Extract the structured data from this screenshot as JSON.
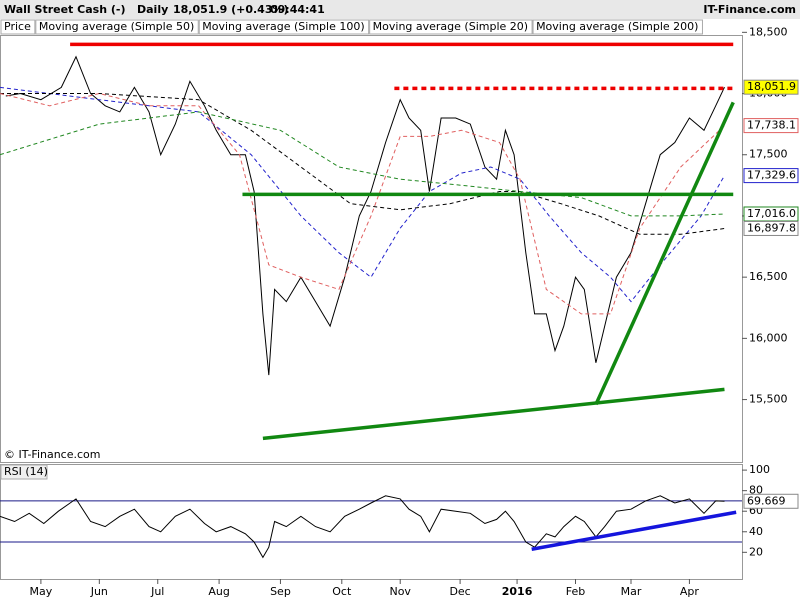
{
  "header": {
    "title": "Wall Street Cash (-)",
    "period": "Daily",
    "last": "18,051.9 (+0.43%)",
    "time": "09:44:41",
    "source": "IT-Finance.com",
    "copyright": "© IT-Finance.com"
  },
  "chart_data": [
    {
      "type": "line",
      "xlim": [
        0,
        254
      ],
      "ylim": [
        14990,
        18470
      ],
      "yticks": [
        {
          "value": 15500,
          "label": "15,500"
        },
        {
          "value": 16000,
          "label": "16,000"
        },
        {
          "value": 16500,
          "label": "16,500"
        },
        {
          "value": 17000,
          "label": "17,000"
        },
        {
          "value": 17500,
          "label": "17,500"
        },
        {
          "value": 18000,
          "label": "18,000"
        },
        {
          "value": 18500,
          "label": "18,500"
        }
      ],
      "series": [
        {
          "name": "Price",
          "color": "#000000",
          "style": "solid",
          "x": [
            2,
            7,
            14,
            21,
            26,
            31,
            36,
            41,
            46,
            51,
            55,
            60,
            65,
            70,
            74,
            79,
            84,
            87,
            90,
            92,
            94,
            98,
            103,
            108,
            113,
            118,
            123,
            127,
            132,
            137,
            140,
            144,
            147,
            151,
            156,
            161,
            166,
            170,
            173,
            176,
            180,
            183,
            187,
            190,
            193,
            197,
            200,
            204,
            207,
            211,
            216,
            221,
            226,
            231,
            236,
            241,
            245,
            248
          ],
          "values": [
            17980,
            18000,
            17950,
            18050,
            18300,
            18000,
            17900,
            17850,
            18050,
            17850,
            17500,
            17750,
            18100,
            17900,
            17700,
            17500,
            17500,
            17200,
            16200,
            15700,
            16400,
            16300,
            16500,
            16300,
            16100,
            16500,
            17000,
            17200,
            17600,
            17950,
            17800,
            17700,
            17200,
            17800,
            17800,
            17750,
            17400,
            17300,
            17700,
            17500,
            16700,
            16200,
            16200,
            15900,
            16100,
            16500,
            16400,
            15800,
            16100,
            16500,
            16700,
            17100,
            17500,
            17600,
            17800,
            17700,
            17900,
            18051.9
          ]
        },
        {
          "name": "Moving average (Simple 50)",
          "color": "#2222cc",
          "style": "dashed",
          "x": [
            0,
            34,
            51,
            68,
            86,
            103,
            116,
            127,
            137,
            147,
            158,
            168,
            178,
            188,
            199,
            209,
            216,
            226,
            240,
            248
          ],
          "values": [
            18050,
            17950,
            17900,
            17850,
            17500,
            17000,
            16700,
            16500,
            16900,
            17200,
            17350,
            17400,
            17300,
            17000,
            16700,
            16500,
            16300,
            16600,
            17000,
            17329.6
          ]
        },
        {
          "name": "Moving average (Simple 100)",
          "color": "#000000",
          "style": "dashed",
          "x": [
            0,
            34,
            68,
            86,
            103,
            120,
            137,
            154,
            171,
            178,
            192,
            205,
            219,
            233,
            248
          ],
          "values": [
            18000,
            18000,
            17950,
            17700,
            17400,
            17100,
            17050,
            17100,
            17200,
            17200,
            17100,
            17000,
            16850,
            16850,
            16897.8
          ]
        },
        {
          "name": "Moving average (Simple 20)",
          "color": "#e06060",
          "style": "dashed",
          "x": [
            0,
            17,
            34,
            51,
            68,
            82,
            92,
            103,
            116,
            127,
            137,
            147,
            158,
            171,
            178,
            187,
            199,
            209,
            219,
            233,
            248
          ],
          "values": [
            18000,
            17900,
            18000,
            17900,
            17900,
            17500,
            16600,
            16500,
            16400,
            17000,
            17650,
            17650,
            17700,
            17600,
            17300,
            16400,
            16200,
            16200,
            16900,
            17400,
            17738.1
          ]
        },
        {
          "name": "Moving average (Simple 200)",
          "color": "#228822",
          "style": "dashed",
          "x": [
            0,
            34,
            68,
            96,
            116,
            137,
            158,
            178,
            199,
            216,
            233,
            248
          ],
          "values": [
            17500,
            17750,
            17850,
            17700,
            17400,
            17300,
            17250,
            17200,
            17150,
            17000,
            17000,
            17016.0
          ]
        }
      ],
      "trendlines": [
        {
          "color": "#ee0000",
          "style": "solid",
          "x": [
            24,
            251
          ],
          "y": [
            18402,
            18402
          ]
        },
        {
          "color": "#ee0000",
          "style": "dotted",
          "x": [
            135,
            252
          ],
          "y": [
            18042,
            18042
          ]
        },
        {
          "color": "#118811",
          "style": "solid",
          "x": [
            83,
            251
          ],
          "y": [
            17176,
            17176
          ]
        },
        {
          "color": "#118811",
          "style": "solid",
          "x": [
            90,
            248
          ],
          "y": [
            15183,
            15583
          ]
        },
        {
          "color": "#118811",
          "style": "solid",
          "x": [
            204,
            251
          ],
          "y": [
            15461,
            17928
          ]
        }
      ],
      "badges": [
        {
          "value": 18051.9,
          "label": "18,051.9",
          "color": "#000000",
          "background": "#ffff00"
        },
        {
          "value": 17738.1,
          "label": "17,738.1",
          "color": "#e06060",
          "background": "#ffffff"
        },
        {
          "value": 17329.6,
          "label": "17,329.6",
          "color": "#2222cc",
          "background": "#ffffff"
        },
        {
          "value": 17016.0,
          "label": "17,016.0",
          "color": "#228822",
          "background": "#ffffff"
        },
        {
          "value": 16897.8,
          "label": "16,897.8",
          "color": "#000000",
          "background": "#ffffff"
        }
      ]
    },
    {
      "type": "line",
      "title": "RSI (14)",
      "xlim": [
        0,
        254
      ],
      "ylim": [
        -5,
        104
      ],
      "yticks": [
        20,
        40,
        60,
        80,
        100
      ],
      "levels": [
        30,
        70
      ],
      "xticks": [
        {
          "value": 14,
          "label": "May"
        },
        {
          "value": 34,
          "label": "Jun"
        },
        {
          "value": 54,
          "label": "Jul"
        },
        {
          "value": 75,
          "label": "Aug"
        },
        {
          "value": 96,
          "label": "Sep"
        },
        {
          "value": 117,
          "label": "Oct"
        },
        {
          "value": 137,
          "label": "Nov"
        },
        {
          "value": 157.5,
          "label": "Dec"
        },
        {
          "value": 177,
          "label": "2016"
        },
        {
          "value": 197,
          "label": "Feb"
        },
        {
          "value": 216,
          "label": "Mar"
        },
        {
          "value": 236,
          "label": "Apr"
        }
      ],
      "series": [
        {
          "color": "#000000",
          "style": "solid",
          "x": [
            0,
            5,
            10,
            15,
            20,
            26,
            31,
            36,
            41,
            46,
            51,
            55,
            60,
            65,
            70,
            74,
            79,
            84,
            87,
            90,
            92,
            94,
            98,
            103,
            108,
            113,
            118,
            123,
            127,
            132,
            137,
            140,
            144,
            147,
            151,
            156,
            161,
            166,
            170,
            173,
            176,
            180,
            183,
            187,
            190,
            193,
            197,
            200,
            204,
            207,
            211,
            216,
            221,
            226,
            231,
            236,
            241,
            245,
            248
          ],
          "values": [
            55,
            50,
            58,
            48,
            60,
            72,
            50,
            45,
            55,
            62,
            45,
            40,
            55,
            62,
            48,
            40,
            45,
            38,
            30,
            15,
            25,
            50,
            45,
            55,
            45,
            40,
            55,
            62,
            68,
            75,
            72,
            62,
            55,
            40,
            62,
            60,
            58,
            48,
            52,
            60,
            50,
            30,
            25,
            38,
            35,
            45,
            55,
            50,
            35,
            45,
            60,
            62,
            70,
            75,
            68,
            72,
            58,
            70,
            69.669
          ]
        }
      ],
      "trendlines": [
        {
          "color": "#1515dd",
          "style": "solid",
          "x": [
            182,
            252
          ],
          "y": [
            23,
            59
          ]
        }
      ],
      "badges": [
        {
          "value": 69.669,
          "label": "69.669",
          "color": "#000000",
          "background": "#ffffff"
        }
      ]
    }
  ]
}
